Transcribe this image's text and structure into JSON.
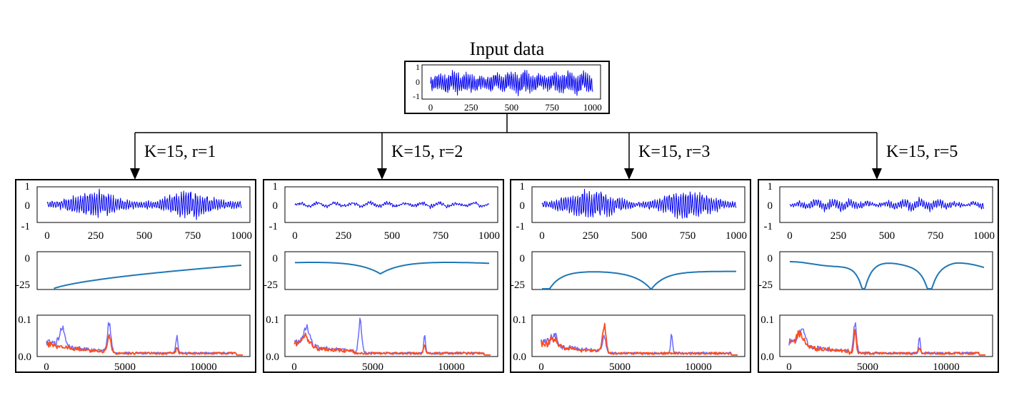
{
  "title": "Input data",
  "colors": {
    "signal": "#0000ee",
    "envelope": "#1f77b4",
    "spectrum_input": "#6b6bff",
    "spectrum_output": "#ff4a1c",
    "frame": "#000000"
  },
  "input_panel": {
    "y_ticks": [
      "1",
      "0",
      "-1"
    ],
    "x_ticks": [
      "0",
      "250",
      "500",
      "750",
      "1000"
    ]
  },
  "branches": [
    {
      "label": "K=15, r=1",
      "notch_centers": [
        0
      ],
      "envelope_type": "rising"
    },
    {
      "label": "K=15, r=2",
      "notch_centers": [
        5300
      ],
      "envelope_type": "notch"
    },
    {
      "label": "K=15, r=3",
      "notch_centers": [
        0,
        6600
      ],
      "envelope_type": "notch"
    },
    {
      "label": "K=15, r=5",
      "notch_centers": [
        4400,
        8600
      ],
      "envelope_type": "notch"
    }
  ],
  "panel_axes": {
    "signal": {
      "y_ticks": [
        "1",
        "0",
        "-1"
      ],
      "x_ticks": [
        "0",
        "250",
        "500",
        "750",
        "1000"
      ]
    },
    "response": {
      "y_ticks": [
        "0",
        "-25"
      ]
    },
    "spectrum": {
      "y_ticks": [
        "0.1",
        "0.0"
      ],
      "x_ticks": [
        "0",
        "5000",
        "10000"
      ]
    }
  }
}
